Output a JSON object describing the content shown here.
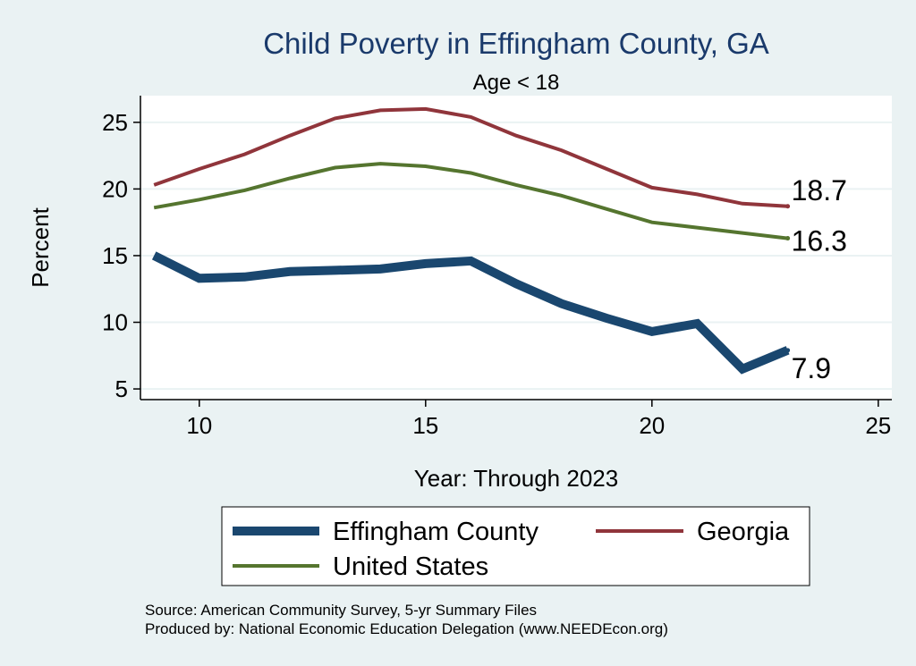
{
  "chart_data": {
    "type": "line",
    "title": "Child Poverty in Effingham County, GA",
    "subtitle": "Age < 18",
    "xlabel": "Year: Through 2023",
    "ylabel": "Percent",
    "xlim": [
      8.7,
      25.3
    ],
    "ylim": [
      4.2,
      27.0
    ],
    "xticks": [
      10,
      15,
      20,
      25
    ],
    "yticks": [
      5,
      10,
      15,
      20,
      25
    ],
    "grid": "horizontal",
    "legend_position": "bottom",
    "x": [
      9,
      10,
      11,
      12,
      13,
      14,
      15,
      16,
      17,
      18,
      19,
      20,
      21,
      22,
      23
    ],
    "series": [
      {
        "name": "Effingham County",
        "color": "#1a476f",
        "values": [
          15.0,
          13.3,
          13.4,
          13.8,
          13.9,
          14.0,
          14.4,
          14.6,
          12.9,
          11.4,
          10.3,
          9.3,
          9.9,
          6.5,
          7.9
        ],
        "end_label": "7.9"
      },
      {
        "name": "Georgia",
        "color": "#90353b",
        "values": [
          20.3,
          21.5,
          22.6,
          24.0,
          25.3,
          25.9,
          26.0,
          25.4,
          24.0,
          22.9,
          21.5,
          20.1,
          19.6,
          18.9,
          18.7
        ],
        "end_label": "18.7"
      },
      {
        "name": "United States",
        "color": "#55752f",
        "values": [
          18.6,
          19.2,
          19.9,
          20.8,
          21.6,
          21.9,
          21.7,
          21.2,
          20.3,
          19.5,
          18.5,
          17.5,
          17.1,
          16.7,
          16.3
        ],
        "end_label": "16.3"
      }
    ],
    "notes": [
      "Source: American Community Survey, 5-yr Summary Files",
      "Produced by: National Economic Education Delegation (www.NEEDEcon.org)"
    ]
  }
}
